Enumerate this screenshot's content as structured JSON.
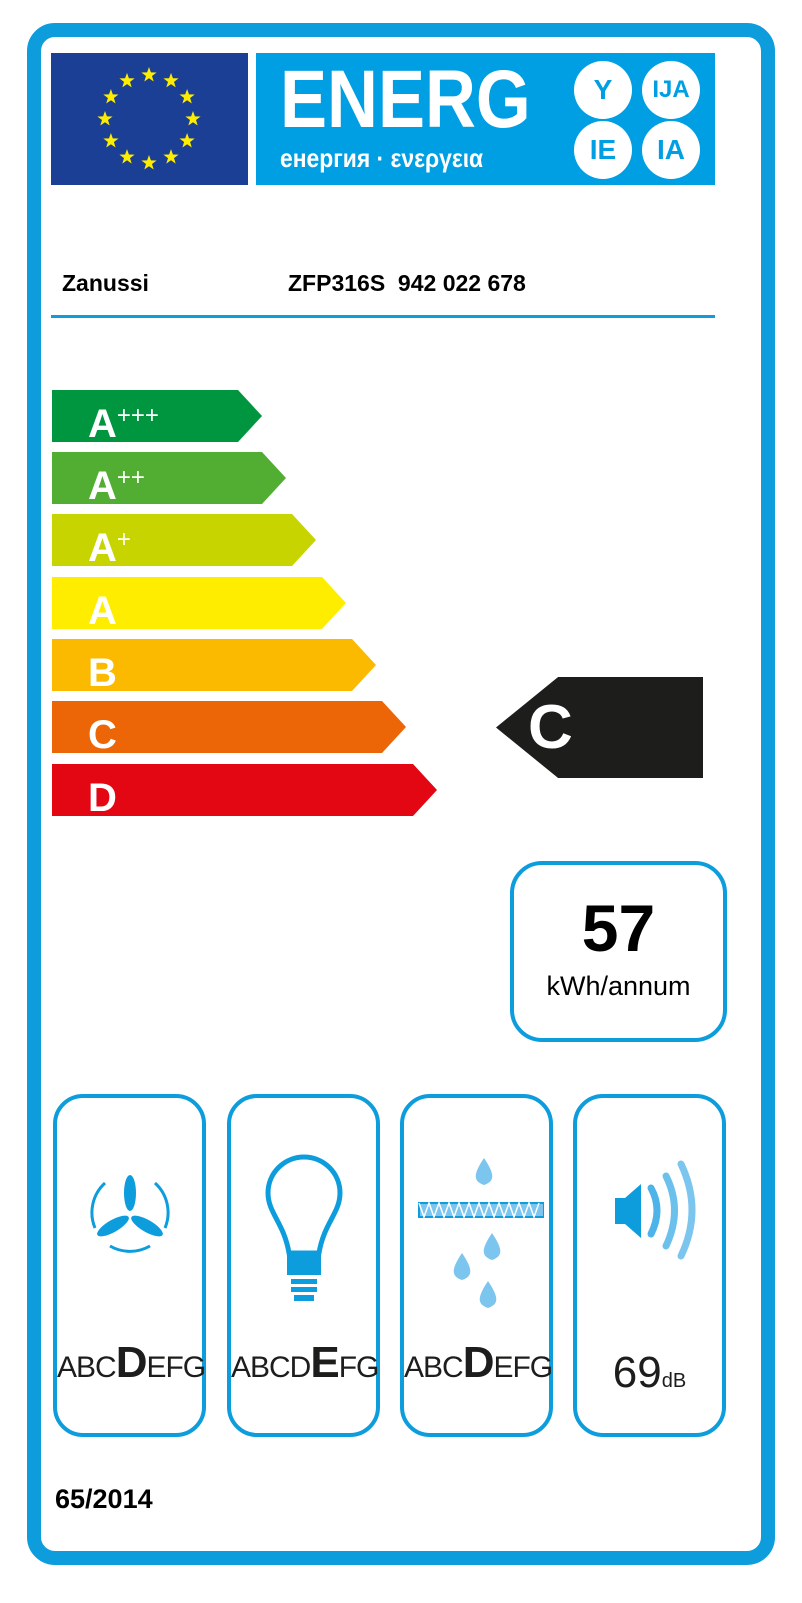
{
  "header": {
    "title": "ENERG",
    "subtitle": "енергия · ενεργεια",
    "suffixes": [
      "Y",
      "IJA",
      "IE",
      "IA"
    ],
    "flag_color": "#1b3f95",
    "brand_color": "#009fe3"
  },
  "supplier": "Zanussi",
  "model": "ZFP316S  942 022 678",
  "classes": [
    {
      "letter": "A",
      "plus": "+++",
      "color": "#009640"
    },
    {
      "letter": "A",
      "plus": "++",
      "color": "#52ae32"
    },
    {
      "letter": "A",
      "plus": "+",
      "color": "#c8d400"
    },
    {
      "letter": "A",
      "plus": "",
      "color": "#ffed00"
    },
    {
      "letter": "B",
      "plus": "",
      "color": "#fbba00"
    },
    {
      "letter": "C",
      "plus": "",
      "color": "#ec6608"
    },
    {
      "letter": "D",
      "plus": "",
      "color": "#e30613"
    }
  ],
  "rating": "C",
  "consumption": {
    "value": "57",
    "unit": "kWh/annum"
  },
  "panels": [
    {
      "icon": "fan-icon",
      "pre": "ABC",
      "grade": "D",
      "post": "EFG"
    },
    {
      "icon": "light-bulb-icon",
      "pre": "ABCD",
      "grade": "E",
      "post": "FG"
    },
    {
      "icon": "grease-filter-icon",
      "pre": "ABC",
      "grade": "D",
      "post": "EFG"
    },
    {
      "icon": "speaker-icon",
      "value": "69",
      "unit": "dB"
    }
  ],
  "regulation": "65/2014"
}
